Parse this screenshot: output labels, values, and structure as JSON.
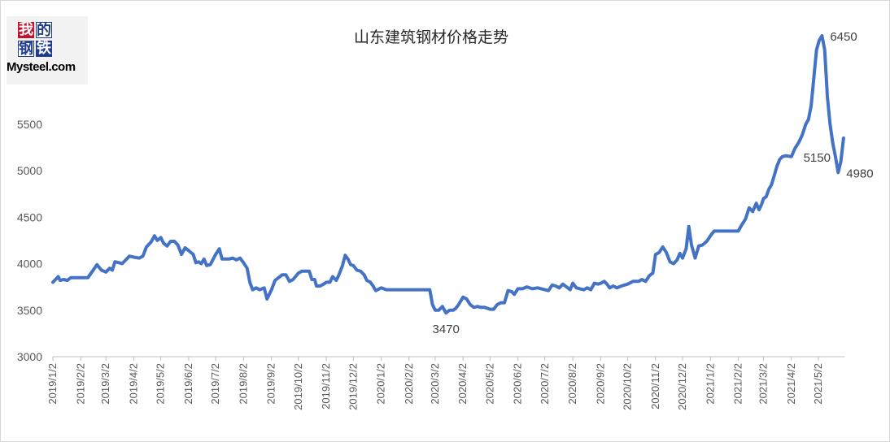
{
  "logo": {
    "chars": [
      "我",
      "的",
      "钢",
      "铁"
    ],
    "brand": "Mysteel.com",
    "colors": {
      "red": "#c8102e",
      "blue": "#1f3c88"
    }
  },
  "chart_data": {
    "type": "line",
    "title": "山东建筑钢材价格走势",
    "xlabel": "",
    "ylabel": "",
    "ylim": [
      3000,
      6450
    ],
    "yticks": [
      3000,
      3500,
      4000,
      4500,
      5000,
      5500
    ],
    "grid": false,
    "legend": "none",
    "line_color": "#4472c4",
    "x_tick_labels": [
      "2019/1/2",
      "2019/2/2",
      "2019/3/2",
      "2019/4/2",
      "2019/5/2",
      "2019/6/2",
      "2019/7/2",
      "2019/8/2",
      "2019/9/2",
      "2019/10/2",
      "2019/11/2",
      "2019/12/2",
      "2020/1/2",
      "2020/2/2",
      "2020/3/2",
      "2020/4/2",
      "2020/5/2",
      "2020/6/2",
      "2020/7/2",
      "2020/8/2",
      "2020/9/2",
      "2020/10/2",
      "2020/11/2",
      "2020/12/2",
      "2021/1/2",
      "2021/2/2",
      "2021/3/2",
      "2021/4/2",
      "2021/5/2"
    ],
    "x_end": "2021/5/31",
    "series": [
      {
        "points": [
          [
            "2019/1/2",
            3800
          ],
          [
            "2019/1/5",
            3830
          ],
          [
            "2019/1/8",
            3860
          ],
          [
            "2019/1/10",
            3820
          ],
          [
            "2019/1/14",
            3830
          ],
          [
            "2019/1/18",
            3820
          ],
          [
            "2019/1/22",
            3850
          ],
          [
            "2019/1/28",
            3850
          ],
          [
            "2019/2/2",
            3850
          ],
          [
            "2019/2/10",
            3850
          ],
          [
            "2019/2/15",
            3920
          ],
          [
            "2019/2/20",
            3990
          ],
          [
            "2019/2/25",
            3930
          ],
          [
            "2019/3/2",
            3910
          ],
          [
            "2019/3/6",
            3950
          ],
          [
            "2019/3/9",
            3930
          ],
          [
            "2019/3/12",
            4020
          ],
          [
            "2019/3/17",
            4010
          ],
          [
            "2019/3/20",
            4000
          ],
          [
            "2019/3/24",
            4040
          ],
          [
            "2019/3/28",
            4080
          ],
          [
            "2019/4/2",
            4070
          ],
          [
            "2019/4/8",
            4060
          ],
          [
            "2019/4/12",
            4080
          ],
          [
            "2019/4/16",
            4180
          ],
          [
            "2019/4/21",
            4230
          ],
          [
            "2019/4/25",
            4300
          ],
          [
            "2019/4/28",
            4250
          ],
          [
            "2019/5/2",
            4280
          ],
          [
            "2019/5/5",
            4220
          ],
          [
            "2019/5/9",
            4190
          ],
          [
            "2019/5/13",
            4240
          ],
          [
            "2019/5/17",
            4240
          ],
          [
            "2019/5/21",
            4200
          ],
          [
            "2019/5/25",
            4100
          ],
          [
            "2019/5/29",
            4170
          ],
          [
            "2019/6/2",
            4140
          ],
          [
            "2019/6/7",
            4100
          ],
          [
            "2019/6/10",
            4010
          ],
          [
            "2019/6/13",
            4020
          ],
          [
            "2019/6/16",
            4000
          ],
          [
            "2019/6/19",
            4050
          ],
          [
            "2019/6/22",
            3980
          ],
          [
            "2019/6/26",
            3990
          ],
          [
            "2019/7/2",
            4100
          ],
          [
            "2019/7/6",
            4160
          ],
          [
            "2019/7/9",
            4050
          ],
          [
            "2019/7/13",
            4050
          ],
          [
            "2019/7/17",
            4050
          ],
          [
            "2019/7/21",
            4060
          ],
          [
            "2019/7/25",
            4040
          ],
          [
            "2019/7/29",
            4060
          ],
          [
            "2019/8/2",
            4010
          ],
          [
            "2019/8/6",
            3950
          ],
          [
            "2019/8/9",
            3800
          ],
          [
            "2019/8/12",
            3720
          ],
          [
            "2019/8/16",
            3740
          ],
          [
            "2019/8/20",
            3720
          ],
          [
            "2019/8/25",
            3740
          ],
          [
            "2019/8/28",
            3620
          ],
          [
            "2019/9/2",
            3720
          ],
          [
            "2019/9/6",
            3820
          ],
          [
            "2019/9/10",
            3850
          ],
          [
            "2019/9/14",
            3880
          ],
          [
            "2019/9/18",
            3880
          ],
          [
            "2019/9/22",
            3810
          ],
          [
            "2019/9/26",
            3830
          ],
          [
            "2019/10/2",
            3900
          ],
          [
            "2019/10/6",
            3920
          ],
          [
            "2019/10/10",
            3920
          ],
          [
            "2019/10/14",
            3920
          ],
          [
            "2019/10/17",
            3830
          ],
          [
            "2019/10/20",
            3830
          ],
          [
            "2019/10/22",
            3760
          ],
          [
            "2019/10/26",
            3760
          ],
          [
            "2019/10/30",
            3780
          ],
          [
            "2019/11/2",
            3800
          ],
          [
            "2019/11/6",
            3800
          ],
          [
            "2019/11/9",
            3860
          ],
          [
            "2019/11/13",
            3820
          ],
          [
            "2019/11/16",
            3880
          ],
          [
            "2019/11/20",
            3980
          ],
          [
            "2019/11/23",
            4090
          ],
          [
            "2019/11/26",
            4050
          ],
          [
            "2019/11/29",
            3990
          ],
          [
            "2019/12/2",
            3980
          ],
          [
            "2019/12/6",
            3930
          ],
          [
            "2019/12/10",
            3920
          ],
          [
            "2019/12/14",
            3880
          ],
          [
            "2019/12/17",
            3820
          ],
          [
            "2019/12/21",
            3800
          ],
          [
            "2019/12/24",
            3760
          ],
          [
            "2019/12/27",
            3710
          ],
          [
            "2020/1/2",
            3740
          ],
          [
            "2020/1/8",
            3720
          ],
          [
            "2020/1/15",
            3720
          ],
          [
            "2020/1/22",
            3720
          ],
          [
            "2020/2/2",
            3720
          ],
          [
            "2020/2/12",
            3720
          ],
          [
            "2020/2/20",
            3720
          ],
          [
            "2020/2/25",
            3720
          ],
          [
            "2020/2/28",
            3560
          ],
          [
            "2020/3/2",
            3500
          ],
          [
            "2020/3/6",
            3500
          ],
          [
            "2020/3/10",
            3540
          ],
          [
            "2020/3/14",
            3470
          ],
          [
            "2020/3/18",
            3500
          ],
          [
            "2020/3/22",
            3500
          ],
          [
            "2020/3/25",
            3520
          ],
          [
            "2020/3/28",
            3560
          ],
          [
            "2020/4/2",
            3640
          ],
          [
            "2020/4/6",
            3620
          ],
          [
            "2020/4/10",
            3560
          ],
          [
            "2020/4/14",
            3530
          ],
          [
            "2020/4/18",
            3540
          ],
          [
            "2020/4/22",
            3530
          ],
          [
            "2020/4/26",
            3530
          ],
          [
            "2020/5/2",
            3510
          ],
          [
            "2020/5/6",
            3510
          ],
          [
            "2020/5/10",
            3560
          ],
          [
            "2020/5/14",
            3580
          ],
          [
            "2020/5/18",
            3580
          ],
          [
            "2020/5/22",
            3710
          ],
          [
            "2020/5/26",
            3700
          ],
          [
            "2020/5/29",
            3670
          ],
          [
            "2020/6/2",
            3730
          ],
          [
            "2020/6/7",
            3730
          ],
          [
            "2020/6/12",
            3750
          ],
          [
            "2020/6/18",
            3730
          ],
          [
            "2020/6/24",
            3740
          ],
          [
            "2020/7/2",
            3720
          ],
          [
            "2020/7/6",
            3710
          ],
          [
            "2020/7/10",
            3770
          ],
          [
            "2020/7/14",
            3760
          ],
          [
            "2020/7/18",
            3740
          ],
          [
            "2020/7/22",
            3780
          ],
          [
            "2020/7/26",
            3750
          ],
          [
            "2020/7/30",
            3720
          ],
          [
            "2020/8/2",
            3790
          ],
          [
            "2020/8/6",
            3740
          ],
          [
            "2020/8/10",
            3730
          ],
          [
            "2020/8/14",
            3720
          ],
          [
            "2020/8/18",
            3740
          ],
          [
            "2020/8/22",
            3720
          ],
          [
            "2020/8/26",
            3790
          ],
          [
            "2020/8/30",
            3780
          ],
          [
            "2020/9/2",
            3790
          ],
          [
            "2020/9/6",
            3810
          ],
          [
            "2020/9/9",
            3780
          ],
          [
            "2020/9/12",
            3740
          ],
          [
            "2020/9/16",
            3760
          ],
          [
            "2020/9/20",
            3740
          ],
          [
            "2020/9/25",
            3760
          ],
          [
            "2020/10/2",
            3780
          ],
          [
            "2020/10/8",
            3810
          ],
          [
            "2020/10/14",
            3810
          ],
          [
            "2020/10/18",
            3830
          ],
          [
            "2020/10/22",
            3810
          ],
          [
            "2020/10/26",
            3870
          ],
          [
            "2020/10/30",
            3900
          ],
          [
            "2020/11/2",
            4100
          ],
          [
            "2020/11/6",
            4120
          ],
          [
            "2020/11/10",
            4180
          ],
          [
            "2020/11/14",
            4120
          ],
          [
            "2020/11/18",
            4020
          ],
          [
            "2020/11/22",
            4000
          ],
          [
            "2020/11/26",
            4040
          ],
          [
            "2020/11/29",
            4110
          ],
          [
            "2020/12/2",
            4060
          ],
          [
            "2020/12/6",
            4160
          ],
          [
            "2020/12/9",
            4400
          ],
          [
            "2020/12/12",
            4200
          ],
          [
            "2020/12/16",
            4060
          ],
          [
            "2020/12/20",
            4190
          ],
          [
            "2020/12/24",
            4200
          ],
          [
            "2020/12/29",
            4240
          ],
          [
            "2021/1/2",
            4300
          ],
          [
            "2021/1/6",
            4350
          ],
          [
            "2021/1/10",
            4350
          ],
          [
            "2021/1/16",
            4350
          ],
          [
            "2021/1/22",
            4350
          ],
          [
            "2021/1/28",
            4350
          ],
          [
            "2021/2/2",
            4350
          ],
          [
            "2021/2/6",
            4420
          ],
          [
            "2021/2/10",
            4480
          ],
          [
            "2021/2/14",
            4600
          ],
          [
            "2021/2/18",
            4560
          ],
          [
            "2021/2/22",
            4650
          ],
          [
            "2021/2/25",
            4580
          ],
          [
            "2021/2/28",
            4640
          ],
          [
            "2021/3/2",
            4700
          ],
          [
            "2021/3/5",
            4720
          ],
          [
            "2021/3/8",
            4800
          ],
          [
            "2021/3/11",
            4850
          ],
          [
            "2021/3/14",
            4950
          ],
          [
            "2021/3/17",
            5050
          ],
          [
            "2021/3/20",
            5120
          ],
          [
            "2021/3/23",
            5150
          ],
          [
            "2021/3/27",
            5160
          ],
          [
            "2021/4/2",
            5150
          ],
          [
            "2021/4/6",
            5240
          ],
          [
            "2021/4/10",
            5300
          ],
          [
            "2021/4/14",
            5380
          ],
          [
            "2021/4/18",
            5500
          ],
          [
            "2021/4/21",
            5550
          ],
          [
            "2021/4/24",
            5700
          ],
          [
            "2021/4/27",
            6000
          ],
          [
            "2021/4/30",
            6300
          ],
          [
            "2021/5/3",
            6400
          ],
          [
            "2021/5/6",
            6450
          ],
          [
            "2021/5/9",
            6300
          ],
          [
            "2021/5/12",
            5800
          ],
          [
            "2021/5/15",
            5500
          ],
          [
            "2021/5/18",
            5300
          ],
          [
            "2021/5/21",
            5150
          ],
          [
            "2021/5/24",
            4980
          ],
          [
            "2021/5/27",
            5100
          ],
          [
            "2021/5/30",
            5350
          ]
        ]
      }
    ],
    "annotations": [
      {
        "text": "3470",
        "date": "2020/3/14",
        "value": 3470,
        "anchor": "below"
      },
      {
        "text": "6450",
        "date": "2021/5/6",
        "value": 6450,
        "anchor": "right"
      },
      {
        "text": "5150",
        "date": "2021/5/21",
        "value": 5150,
        "anchor": "left"
      },
      {
        "text": "4980",
        "date": "2021/5/24",
        "value": 4980,
        "anchor": "right"
      }
    ]
  }
}
